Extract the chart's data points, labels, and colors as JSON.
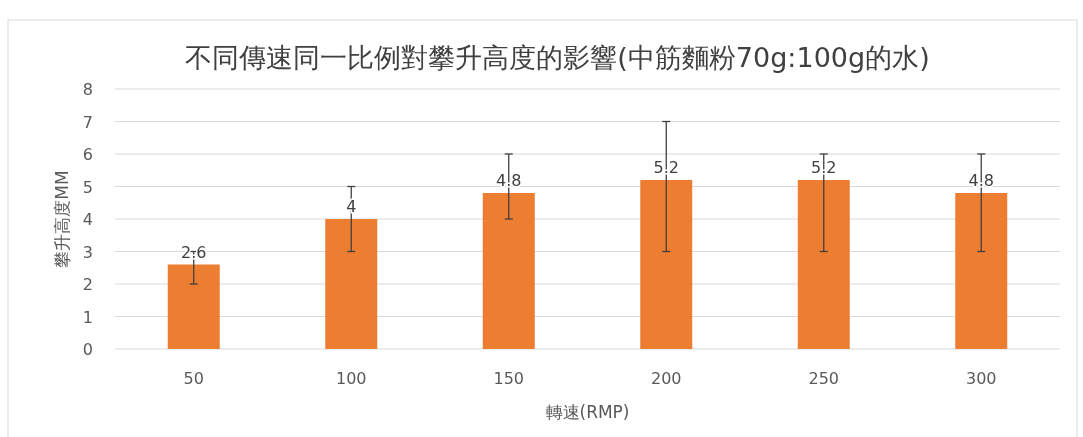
{
  "chart_data": {
    "type": "bar",
    "title": "不同傳速同一比例對攀升高度的影響(中筋麵粉70g:100g的水)",
    "xlabel": "轉速(RMP)",
    "ylabel": "攀升高度MM",
    "categories": [
      "50",
      "100",
      "150",
      "200",
      "250",
      "300"
    ],
    "values": [
      2.6,
      4,
      4.8,
      5.2,
      5.2,
      4.8
    ],
    "errors": [
      [
        2,
        3
      ],
      [
        3,
        5
      ],
      [
        4,
        6
      ],
      [
        3,
        7
      ],
      [
        3,
        6
      ],
      [
        3,
        6
      ]
    ],
    "color": "#ed7d31",
    "ylim": [
      0,
      8
    ],
    "yticks": [
      0,
      1,
      2,
      3,
      4,
      5,
      6,
      7,
      8
    ],
    "grid": "y",
    "data_labels": true
  }
}
